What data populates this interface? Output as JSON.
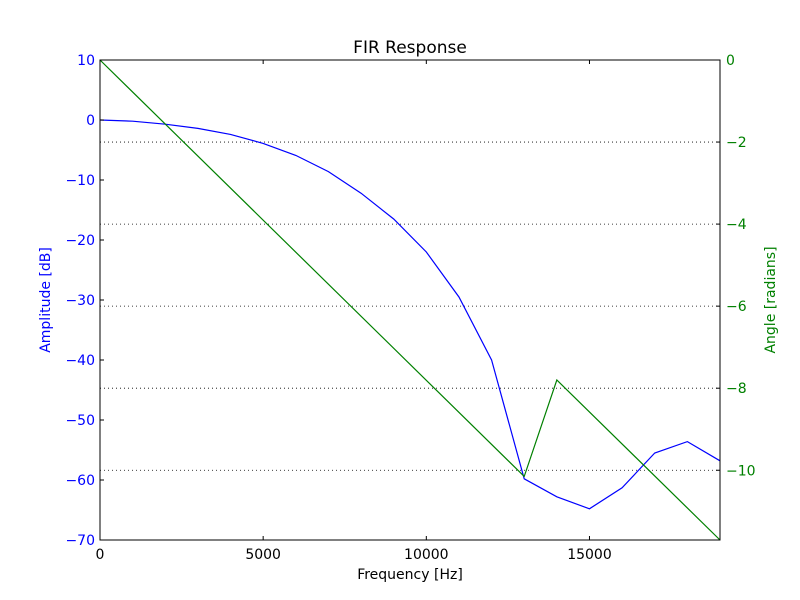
{
  "chart_data": {
    "type": "line",
    "title": "FIR Response",
    "xlabel": "Frequency [Hz]",
    "ylabel": "Amplitude [dB]",
    "y2label": "Angle [radians]",
    "xlim": [
      0,
      19000
    ],
    "ylim": [
      -70,
      10
    ],
    "y2lim": [
      -11.7,
      0
    ],
    "xticks": [
      0,
      5000,
      10000,
      15000
    ],
    "xtick_labels": [
      "0",
      "5000",
      "10000",
      "15000"
    ],
    "yticks": [
      10,
      0,
      -10,
      -20,
      -30,
      -40,
      -50,
      -60,
      -70
    ],
    "ytick_labels": [
      "10",
      "0",
      "−10",
      "−20",
      "−30",
      "−40",
      "−50",
      "−60",
      "−70"
    ],
    "y2ticks": [
      0,
      -2,
      -4,
      -6,
      -8,
      -10
    ],
    "y2tick_labels": [
      "0",
      "−2",
      "−4",
      "−6",
      "−8",
      "−10"
    ],
    "grid": "dotted horizontal lines at right-axis ticks",
    "colors": {
      "amplitude": "#0000ff",
      "angle": "#008000",
      "axes": "#000000",
      "grid": "#000000"
    },
    "series": [
      {
        "axis": "left",
        "color": "#0000ff",
        "x": [
          0,
          1000,
          2000,
          3000,
          4000,
          5000,
          6000,
          7000,
          8000,
          9000,
          10000,
          11000,
          12000,
          13000,
          14000,
          15000,
          16000,
          17000,
          18000,
          19000
        ],
        "values": [
          0,
          -0.2,
          -0.7,
          -1.4,
          -2.4,
          -3.9,
          -5.9,
          -8.6,
          -12.2,
          -16.5,
          -22.0,
          -29.5,
          -40.0,
          -59.8,
          -62.8,
          -64.8,
          -61.3,
          -55.5,
          -53.6,
          -56.8
        ]
      },
      {
        "axis": "right",
        "color": "#008000",
        "x": [
          0,
          13000,
          14000,
          19000
        ],
        "values": [
          0,
          -10.15,
          -7.8,
          -11.7
        ]
      }
    ]
  }
}
